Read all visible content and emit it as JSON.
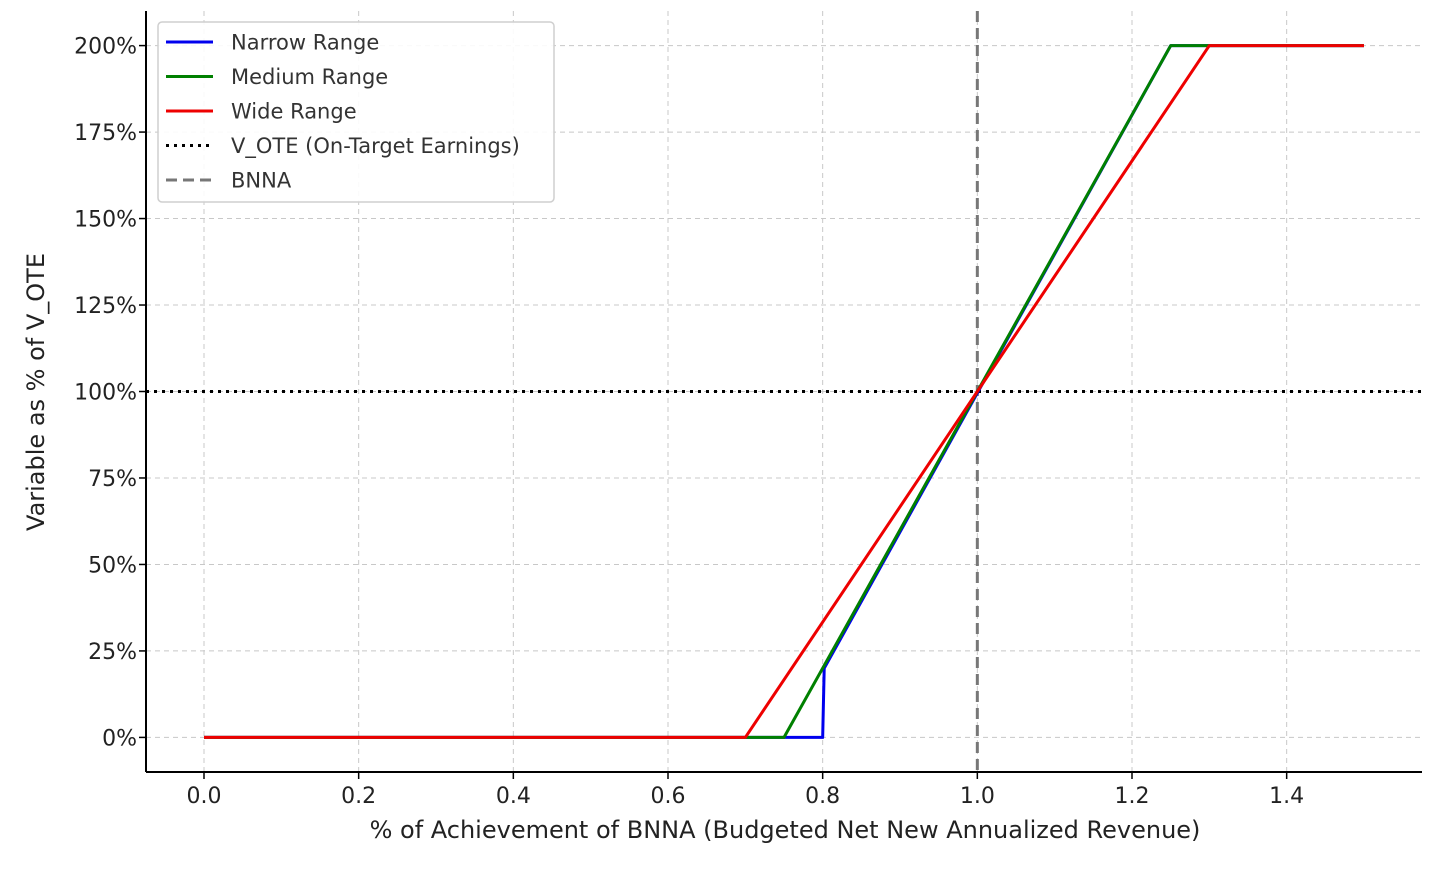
{
  "chart_data": {
    "type": "line",
    "title": "",
    "xlabel": "% of Achievement of BNNA (Budgeted Net New Annualized Revenue)",
    "ylabel": "Variable as % of V_OTE",
    "xlim": [
      -0.075,
      1.575
    ],
    "ylim": [
      -10,
      210
    ],
    "xticks": [
      0.0,
      0.2,
      0.4,
      0.6,
      0.8,
      1.0,
      1.2,
      1.4
    ],
    "xtick_labels": [
      "0.0",
      "0.2",
      "0.4",
      "0.6",
      "0.8",
      "1.0",
      "1.2",
      "1.4"
    ],
    "yticks": [
      0,
      25,
      50,
      75,
      100,
      125,
      150,
      175,
      200
    ],
    "ytick_labels": [
      "0%",
      "25%",
      "50%",
      "75%",
      "100%",
      "125%",
      "150%",
      "175%",
      "200%"
    ],
    "grid": true,
    "legend_position": "top-left",
    "series": [
      {
        "name": "Narrow Range",
        "color": "#0000ee",
        "style": "solid",
        "x": [
          0.0,
          0.8,
          0.802,
          1.25,
          1.5
        ],
        "y": [
          0,
          0,
          20,
          200,
          200
        ]
      },
      {
        "name": "Medium Range",
        "color": "#008000",
        "style": "solid",
        "x": [
          0.0,
          0.75,
          1.25,
          1.5
        ],
        "y": [
          0,
          0,
          200,
          200
        ]
      },
      {
        "name": "Wide Range",
        "color": "#ee0000",
        "style": "solid",
        "x": [
          0.0,
          0.7,
          1.3,
          1.5
        ],
        "y": [
          0,
          0,
          200,
          200
        ]
      }
    ],
    "reference_lines": [
      {
        "name": "V_OTE (On-Target Earnings)",
        "orientation": "horizontal",
        "value": 100,
        "color": "#000000",
        "style": "dotted"
      },
      {
        "name": "BNNA",
        "orientation": "vertical",
        "value": 1.0,
        "color": "#777777",
        "style": "dashed"
      }
    ]
  }
}
